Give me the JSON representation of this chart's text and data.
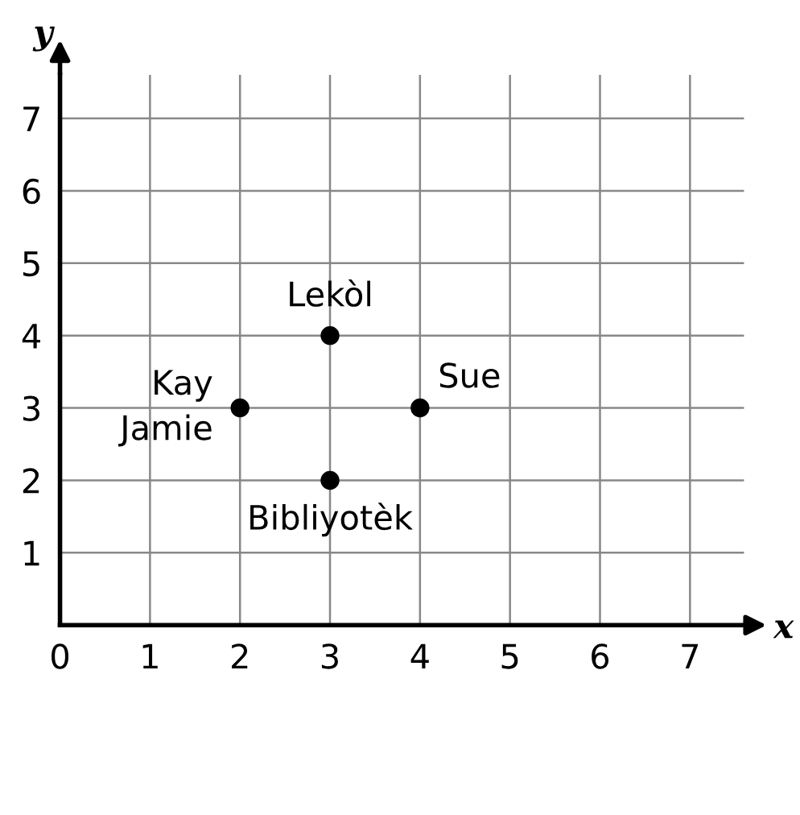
{
  "chart_data": {
    "type": "scatter",
    "xlabel": "x",
    "ylabel": "y",
    "x": [
      2,
      3,
      4,
      3
    ],
    "series": [
      {
        "color": "#000000",
        "values": [
          3,
          4,
          3,
          2
        ]
      }
    ],
    "annotations": [
      {
        "text": "Kay\nJamie",
        "x": 2,
        "y": 3
      },
      {
        "text": "Lekòl",
        "x": 3,
        "y": 4
      },
      {
        "text": "Sue",
        "x": 4,
        "y": 3
      },
      {
        "text": "Bibliyotèk",
        "x": 3,
        "y": 2
      }
    ],
    "xlim": [
      0,
      7.6
    ],
    "ylim": [
      0,
      7.6
    ],
    "xticks": [
      0,
      1,
      2,
      3,
      4,
      5,
      6,
      7
    ],
    "yticks": [
      1,
      2,
      3,
      4,
      5,
      6,
      7
    ],
    "grid": true,
    "marker": "circle"
  }
}
